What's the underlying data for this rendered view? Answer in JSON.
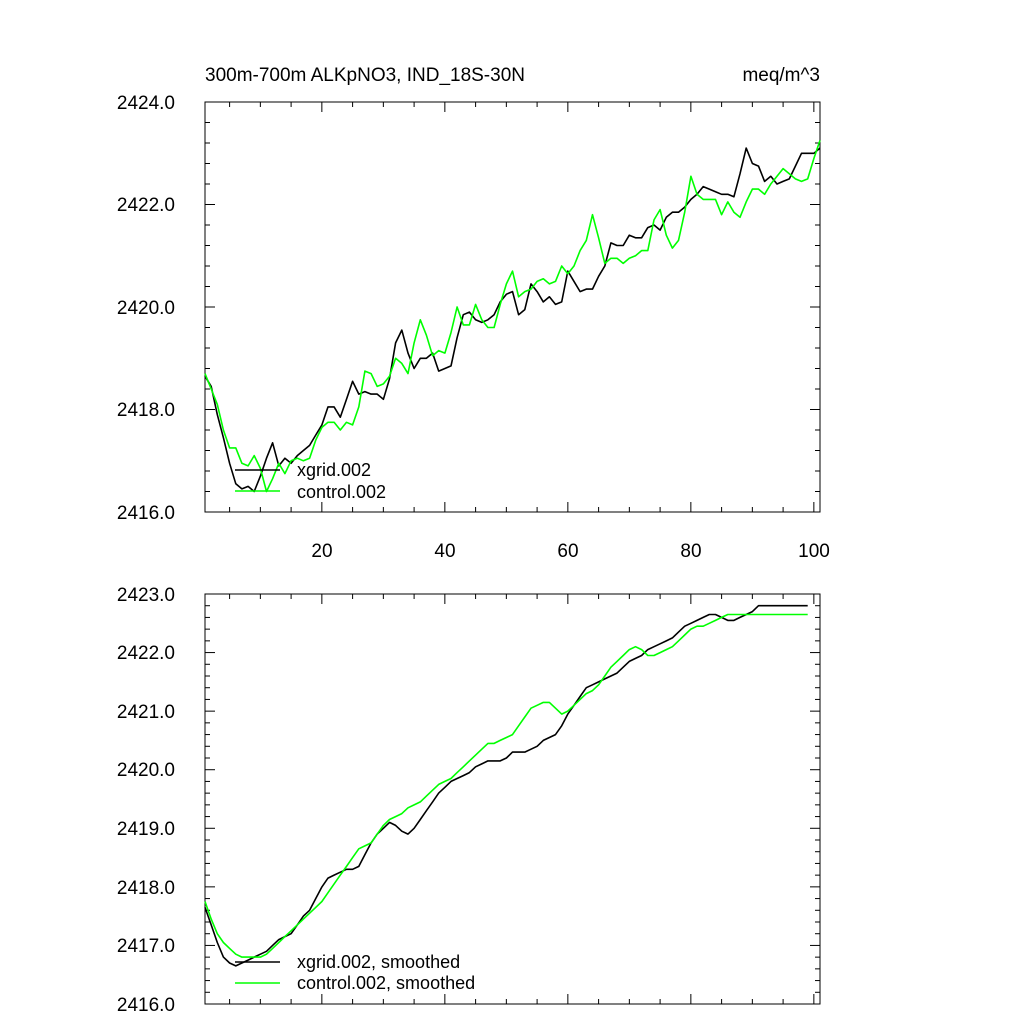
{
  "chart_data": [
    {
      "type": "line",
      "id": "raw",
      "title_left": "300m-700m ALKpNO3, IND_18S-30N",
      "title_right": "meq/m^3",
      "xlim": [
        1,
        101
      ],
      "ylim": [
        2416.0,
        2424.0
      ],
      "ytick_labels": [
        "2416.0",
        "2418.0",
        "2420.0",
        "2422.0",
        "2424.0"
      ],
      "xtick_labels": [
        "20",
        "40",
        "60",
        "80",
        "100"
      ],
      "legend_position": "bottom-left",
      "series": [
        {
          "name": "xgrid.002",
          "color": "#000000",
          "x": [
            1,
            2,
            3,
            4,
            5,
            6,
            7,
            8,
            9,
            10,
            11,
            12,
            13,
            14,
            15,
            16,
            17,
            18,
            19,
            20,
            21,
            22,
            23,
            24,
            25,
            26,
            27,
            28,
            29,
            30,
            31,
            32,
            33,
            34,
            35,
            36,
            37,
            38,
            39,
            40,
            41,
            42,
            43,
            44,
            45,
            46,
            47,
            48,
            49,
            50,
            51,
            52,
            53,
            54,
            55,
            56,
            57,
            58,
            59,
            60,
            61,
            62,
            63,
            64,
            65,
            66,
            67,
            68,
            69,
            70,
            71,
            72,
            73,
            74,
            75,
            76,
            77,
            78,
            79,
            80,
            81,
            82,
            83,
            84,
            85,
            86,
            87,
            88,
            89,
            90,
            91,
            92,
            93,
            94,
            95,
            96,
            97,
            98,
            99,
            100,
            101
          ],
          "values": [
            2418.65,
            2418.45,
            2417.9,
            2417.45,
            2416.95,
            2416.55,
            2416.45,
            2416.5,
            2416.4,
            2416.7,
            2417.05,
            2417.35,
            2416.9,
            2417.05,
            2416.95,
            2417.1,
            2417.2,
            2417.3,
            2417.5,
            2417.7,
            2418.05,
            2418.05,
            2417.85,
            2418.2,
            2418.55,
            2418.3,
            2418.35,
            2418.3,
            2418.3,
            2418.2,
            2418.6,
            2419.3,
            2419.55,
            2419.1,
            2418.8,
            2419.0,
            2419.0,
            2419.1,
            2418.75,
            2418.8,
            2418.85,
            2419.4,
            2419.85,
            2419.9,
            2419.75,
            2419.7,
            2419.75,
            2419.85,
            2420.1,
            2420.25,
            2420.3,
            2419.85,
            2419.95,
            2420.45,
            2420.3,
            2420.1,
            2420.2,
            2420.05,
            2420.1,
            2420.7,
            2420.5,
            2420.3,
            2420.35,
            2420.35,
            2420.6,
            2420.8,
            2421.25,
            2421.2,
            2421.2,
            2421.4,
            2421.35,
            2421.35,
            2421.55,
            2421.6,
            2421.5,
            2421.75,
            2421.85,
            2421.85,
            2421.95,
            2422.1,
            2422.2,
            2422.35,
            2422.3,
            2422.25,
            2422.2,
            2422.2,
            2422.15,
            2422.6,
            2423.1,
            2422.8,
            2422.75,
            2422.45,
            2422.55,
            2422.4,
            2422.45,
            2422.5,
            2422.75,
            2423.0,
            2423.0,
            2423.0,
            2423.1
          ]
        },
        {
          "name": "control.002",
          "color": "#00ff00",
          "x": [
            1,
            2,
            3,
            4,
            5,
            6,
            7,
            8,
            9,
            10,
            11,
            12,
            13,
            14,
            15,
            16,
            17,
            18,
            19,
            20,
            21,
            22,
            23,
            24,
            25,
            26,
            27,
            28,
            29,
            30,
            31,
            32,
            33,
            34,
            35,
            36,
            37,
            38,
            39,
            40,
            41,
            42,
            43,
            44,
            45,
            46,
            47,
            48,
            49,
            50,
            51,
            52,
            53,
            54,
            55,
            56,
            57,
            58,
            59,
            60,
            61,
            62,
            63,
            64,
            65,
            66,
            67,
            68,
            69,
            70,
            71,
            72,
            73,
            74,
            75,
            76,
            77,
            78,
            79,
            80,
            81,
            82,
            83,
            84,
            85,
            86,
            87,
            88,
            89,
            90,
            91,
            92,
            93,
            94,
            95,
            96,
            97,
            98,
            99,
            100,
            101
          ],
          "values": [
            2418.7,
            2418.4,
            2418.1,
            2417.6,
            2417.25,
            2417.25,
            2416.95,
            2416.9,
            2417.1,
            2416.85,
            2416.4,
            2416.65,
            2416.95,
            2416.75,
            2417.0,
            2417.05,
            2417.0,
            2417.05,
            2417.4,
            2417.65,
            2417.75,
            2417.75,
            2417.6,
            2417.75,
            2417.7,
            2418.05,
            2418.75,
            2418.7,
            2418.45,
            2418.5,
            2418.65,
            2419.0,
            2418.9,
            2418.7,
            2419.3,
            2419.75,
            2419.45,
            2419.05,
            2419.15,
            2419.1,
            2419.5,
            2420.0,
            2419.65,
            2419.65,
            2420.05,
            2419.75,
            2419.6,
            2419.6,
            2420.05,
            2420.45,
            2420.7,
            2420.2,
            2420.3,
            2420.35,
            2420.5,
            2420.55,
            2420.45,
            2420.5,
            2420.8,
            2420.65,
            2420.8,
            2421.1,
            2421.3,
            2421.8,
            2421.35,
            2420.85,
            2420.95,
            2420.95,
            2420.85,
            2420.95,
            2421.0,
            2421.1,
            2421.1,
            2421.7,
            2421.9,
            2421.4,
            2421.15,
            2421.3,
            2421.85,
            2422.55,
            2422.2,
            2422.1,
            2422.1,
            2422.1,
            2421.8,
            2422.05,
            2421.85,
            2421.75,
            2422.05,
            2422.3,
            2422.3,
            2422.2,
            2422.4,
            2422.55,
            2422.7,
            2422.6,
            2422.5,
            2422.45,
            2422.5,
            2422.9,
            2423.25
          ]
        }
      ]
    },
    {
      "type": "line",
      "id": "smoothed",
      "xlim": [
        1,
        101
      ],
      "ylim": [
        2416.0,
        2423.0
      ],
      "ytick_labels": [
        "2416.0",
        "2417.0",
        "2418.0",
        "2419.0",
        "2420.0",
        "2421.0",
        "2422.0",
        "2423.0"
      ],
      "legend_position": "bottom-left",
      "series": [
        {
          "name": "xgrid.002, smoothed",
          "color": "#000000",
          "x": [
            1,
            2,
            3,
            4,
            5,
            6,
            7,
            8,
            9,
            10,
            11,
            12,
            13,
            14,
            15,
            16,
            17,
            18,
            19,
            20,
            21,
            22,
            23,
            24,
            25,
            26,
            27,
            28,
            29,
            30,
            31,
            32,
            33,
            34,
            35,
            36,
            37,
            38,
            39,
            40,
            41,
            42,
            43,
            44,
            45,
            46,
            47,
            48,
            49,
            50,
            51,
            52,
            53,
            54,
            55,
            56,
            57,
            58,
            59,
            60,
            61,
            62,
            63,
            64,
            65,
            66,
            67,
            68,
            69,
            70,
            71,
            72,
            73,
            74,
            75,
            76,
            77,
            78,
            79,
            80,
            81,
            82,
            83,
            84,
            85,
            86,
            87,
            88,
            89,
            90,
            91,
            92,
            93,
            94,
            95,
            96,
            97,
            98,
            99
          ],
          "values": [
            2417.65,
            2417.35,
            2417.05,
            2416.8,
            2416.7,
            2416.65,
            2416.7,
            2416.75,
            2416.8,
            2416.85,
            2416.9,
            2417.0,
            2417.1,
            2417.15,
            2417.2,
            2417.35,
            2417.5,
            2417.6,
            2417.8,
            2418.0,
            2418.15,
            2418.2,
            2418.25,
            2418.3,
            2418.3,
            2418.35,
            2418.55,
            2418.75,
            2418.9,
            2419.0,
            2419.1,
            2419.05,
            2418.95,
            2418.9,
            2419.0,
            2419.15,
            2419.3,
            2419.45,
            2419.6,
            2419.7,
            2419.8,
            2419.85,
            2419.9,
            2419.95,
            2420.05,
            2420.1,
            2420.15,
            2420.15,
            2420.15,
            2420.2,
            2420.3,
            2420.3,
            2420.3,
            2420.35,
            2420.4,
            2420.5,
            2420.55,
            2420.6,
            2420.75,
            2420.95,
            2421.1,
            2421.25,
            2421.4,
            2421.45,
            2421.5,
            2421.55,
            2421.6,
            2421.65,
            2421.75,
            2421.85,
            2421.9,
            2421.95,
            2422.05,
            2422.1,
            2422.15,
            2422.2,
            2422.25,
            2422.35,
            2422.45,
            2422.5,
            2422.55,
            2422.6,
            2422.65,
            2422.65,
            2422.6,
            2422.55,
            2422.55,
            2422.6,
            2422.65,
            2422.7,
            2422.8,
            2422.8,
            2422.8,
            2422.8,
            2422.8,
            2422.8,
            2422.8,
            2422.8,
            2422.8
          ]
        },
        {
          "name": "control.002, smoothed",
          "color": "#00ff00",
          "x": [
            1,
            2,
            3,
            4,
            5,
            6,
            7,
            8,
            9,
            10,
            11,
            12,
            13,
            14,
            15,
            16,
            17,
            18,
            19,
            20,
            21,
            22,
            23,
            24,
            25,
            26,
            27,
            28,
            29,
            30,
            31,
            32,
            33,
            34,
            35,
            36,
            37,
            38,
            39,
            40,
            41,
            42,
            43,
            44,
            45,
            46,
            47,
            48,
            49,
            50,
            51,
            52,
            53,
            54,
            55,
            56,
            57,
            58,
            59,
            60,
            61,
            62,
            63,
            64,
            65,
            66,
            67,
            68,
            69,
            70,
            71,
            72,
            73,
            74,
            75,
            76,
            77,
            78,
            79,
            80,
            81,
            82,
            83,
            84,
            85,
            86,
            87,
            88,
            89,
            90,
            91,
            92,
            93,
            94,
            95,
            96,
            97,
            98,
            99
          ],
          "values": [
            2417.75,
            2417.45,
            2417.2,
            2417.05,
            2416.95,
            2416.85,
            2416.8,
            2416.8,
            2416.8,
            2416.8,
            2416.85,
            2416.95,
            2417.05,
            2417.15,
            2417.25,
            2417.35,
            2417.45,
            2417.55,
            2417.65,
            2417.75,
            2417.9,
            2418.05,
            2418.2,
            2418.35,
            2418.5,
            2418.65,
            2418.7,
            2418.75,
            2418.9,
            2419.05,
            2419.15,
            2419.2,
            2419.25,
            2419.35,
            2419.4,
            2419.45,
            2419.55,
            2419.65,
            2419.75,
            2419.8,
            2419.85,
            2419.95,
            2420.05,
            2420.15,
            2420.25,
            2420.35,
            2420.45,
            2420.45,
            2420.5,
            2420.55,
            2420.6,
            2420.75,
            2420.9,
            2421.05,
            2421.1,
            2421.15,
            2421.15,
            2421.05,
            2420.95,
            2421.0,
            2421.1,
            2421.2,
            2421.3,
            2421.35,
            2421.45,
            2421.6,
            2421.75,
            2421.85,
            2421.95,
            2422.05,
            2422.1,
            2422.05,
            2421.95,
            2421.95,
            2422.0,
            2422.05,
            2422.1,
            2422.2,
            2422.3,
            2422.4,
            2422.45,
            2422.45,
            2422.5,
            2422.55,
            2422.6,
            2422.65,
            2422.65,
            2422.65,
            2422.65,
            2422.65,
            2422.65,
            2422.65,
            2422.65,
            2422.65,
            2422.65,
            2422.65,
            2422.65,
            2422.65,
            2422.65
          ]
        }
      ]
    }
  ]
}
